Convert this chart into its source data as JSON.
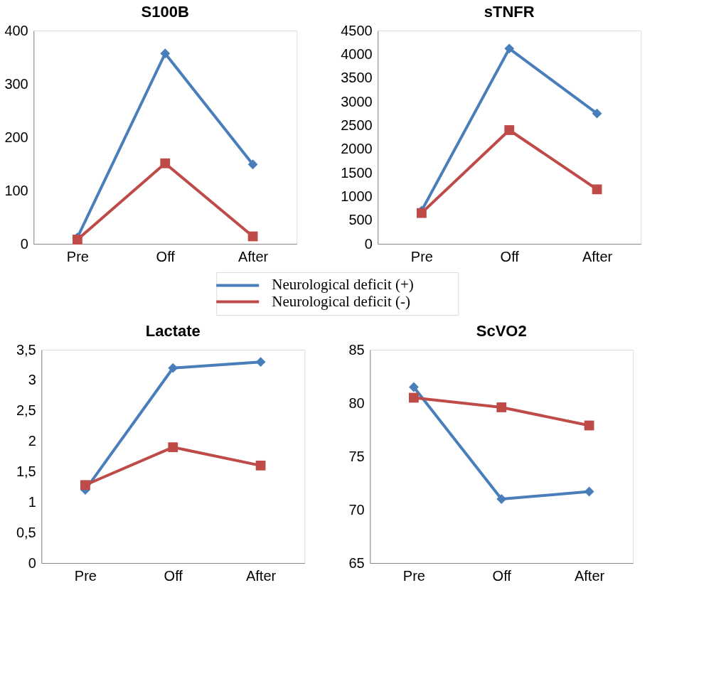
{
  "chart_data": [
    {
      "type": "line",
      "title": "S100B",
      "categories": [
        "Pre",
        "Off",
        "After"
      ],
      "ylim": [
        0,
        400
      ],
      "yticks": [
        0,
        100,
        200,
        300,
        400
      ],
      "grid": false,
      "legend": "bottom",
      "line_style": "solid",
      "series": [
        {
          "name": "Neurological deficit (+)",
          "color": "#4a7ebb",
          "marker": "diamond",
          "values": [
            12,
            357,
            149
          ]
        },
        {
          "name": "Neurological deficit (-)",
          "color": "#be4b48",
          "marker": "square",
          "values": [
            8,
            151,
            14
          ]
        }
      ]
    },
    {
      "type": "line",
      "title": "sTNFR",
      "categories": [
        "Pre",
        "Off",
        "After"
      ],
      "ylim": [
        0,
        4500
      ],
      "yticks": [
        0,
        500,
        1000,
        1500,
        2000,
        2500,
        3000,
        3500,
        4000,
        4500
      ],
      "grid": false,
      "line_style": "solid",
      "series": [
        {
          "color": "#4a7ebb",
          "marker": "diamond",
          "values": [
            700,
            4120,
            2750
          ]
        },
        {
          "color": "#be4b48",
          "marker": "square",
          "values": [
            650,
            2400,
            1150
          ]
        }
      ]
    },
    {
      "type": "line",
      "title": "Lactate",
      "categories": [
        "Pre",
        "Off",
        "After"
      ],
      "ylim": [
        0,
        3.5
      ],
      "yticks": [
        0,
        {
          "value": 0.5,
          "label": "0,5"
        },
        1,
        {
          "value": 1.5,
          "label": "1,5"
        },
        2,
        {
          "value": 2.5,
          "label": "2,5"
        },
        3,
        {
          "value": 3.5,
          "label": "3,5"
        }
      ],
      "grid": false,
      "line_style": "solid",
      "series": [
        {
          "color": "#4a7ebb",
          "marker": "diamond",
          "values": [
            1.2,
            3.2,
            3.3
          ]
        },
        {
          "color": "#be4b48",
          "marker": "square",
          "values": [
            1.28,
            1.9,
            1.6
          ]
        }
      ]
    },
    {
      "type": "line",
      "title": "ScVO2",
      "categories": [
        "Pre",
        "Off",
        "After"
      ],
      "ylim": [
        65,
        85
      ],
      "yticks": [
        65,
        70,
        75,
        80,
        85
      ],
      "grid": false,
      "line_style": "solid",
      "series": [
        {
          "color": "#4a7ebb",
          "marker": "diamond",
          "values": [
            81.5,
            71.0,
            71.7
          ]
        },
        {
          "color": "#be4b48",
          "marker": "square",
          "values": [
            80.5,
            79.6,
            77.9
          ]
        }
      ]
    }
  ]
}
